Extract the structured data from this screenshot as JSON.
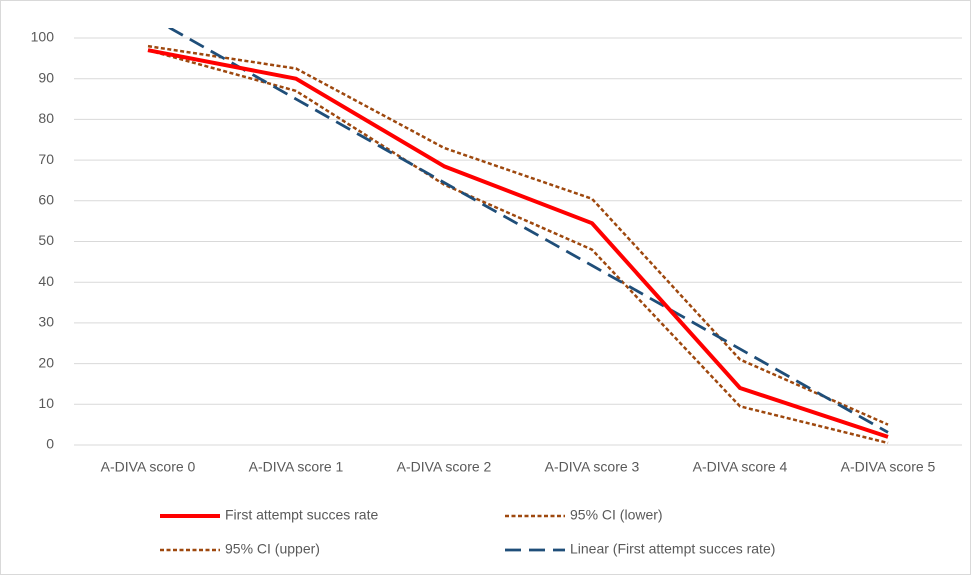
{
  "chart_data": {
    "type": "line",
    "categories": [
      "A-DIVA score 0",
      "A-DIVA score 1",
      "A-DIVA score 2",
      "A-DIVA score 3",
      "A-DIVA score 4",
      "A-DIVA score 5"
    ],
    "series": [
      {
        "name": "First attempt succes rate",
        "color": "#ff0000",
        "dash": "solid",
        "values": [
          97,
          90,
          68.5,
          54.5,
          14,
          2
        ]
      },
      {
        "name": "95% CI (lower)",
        "color": "#9e480e",
        "dash": "dotted",
        "values": [
          97,
          87,
          64,
          48,
          9.5,
          0.5
        ]
      },
      {
        "name": "95% CI (upper)",
        "color": "#9e480e",
        "dash": "dotted",
        "values": [
          98,
          92.5,
          73,
          60.5,
          21,
          5
        ]
      },
      {
        "name": "Linear (First attempt succes rate)",
        "color": "#1f4e79",
        "dash": "dashed",
        "values": [
          105.5,
          85,
          64.5,
          44.1,
          23.6,
          3.1
        ]
      }
    ],
    "ylim": [
      0,
      100
    ],
    "yticks": [
      0,
      10,
      20,
      30,
      40,
      50,
      60,
      70,
      80,
      90,
      100
    ],
    "grid": true,
    "legend": "bottom"
  }
}
